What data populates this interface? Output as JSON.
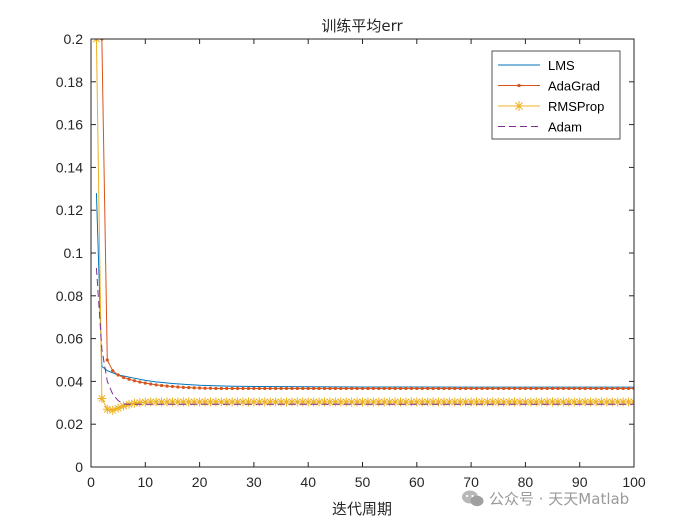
{
  "chart_data": {
    "type": "line",
    "title": "训练平均err",
    "xlabel": "迭代周期",
    "ylabel": "",
    "xlim": [
      0,
      100
    ],
    "ylim": [
      0,
      0.2
    ],
    "xticks": [
      0,
      10,
      20,
      30,
      40,
      50,
      60,
      70,
      80,
      90,
      100
    ],
    "xtick_labels": [
      "0",
      "10",
      "20",
      "30",
      "40",
      "50",
      "60",
      "70",
      "80",
      "90",
      "100"
    ],
    "yticks": [
      0,
      0.02,
      0.04,
      0.06,
      0.08,
      0.1,
      0.12,
      0.14,
      0.16,
      0.18,
      0.2
    ],
    "ytick_labels": [
      "0",
      "0.02",
      "0.04",
      "0.06",
      "0.08",
      "0.1",
      "0.12",
      "0.14",
      "0.16",
      "0.18",
      "0.2"
    ],
    "grid": false,
    "legend_position": "top-right",
    "series": [
      {
        "name": "LMS",
        "color": "#0072BD",
        "line": "solid",
        "marker": "none",
        "x": [
          1,
          2,
          3,
          4,
          5,
          6,
          8,
          10,
          12,
          15,
          18,
          20,
          25,
          30,
          40,
          50,
          60,
          70,
          80,
          90,
          100
        ],
        "y": [
          0.128,
          0.047,
          0.045,
          0.044,
          0.043,
          0.0425,
          0.0415,
          0.0405,
          0.0398,
          0.039,
          0.0385,
          0.0382,
          0.0378,
          0.0376,
          0.0375,
          0.0374,
          0.0374,
          0.0373,
          0.0373,
          0.0373,
          0.0373
        ]
      },
      {
        "name": "AdaGrad",
        "color": "#D95319",
        "line": "solid",
        "marker": "dot",
        "x": [
          1,
          2,
          3,
          4,
          5,
          6,
          7,
          8,
          9,
          10,
          11,
          12,
          13,
          14,
          15,
          16,
          17,
          18,
          19,
          20,
          21,
          22,
          23,
          24,
          25,
          26,
          27,
          28,
          29,
          30,
          31,
          32,
          33,
          34,
          35,
          36,
          37,
          38,
          39,
          40,
          41,
          42,
          43,
          44,
          45,
          46,
          47,
          48,
          49,
          50,
          51,
          52,
          53,
          54,
          55,
          56,
          57,
          58,
          59,
          60,
          61,
          62,
          63,
          64,
          65,
          66,
          67,
          68,
          69,
          70,
          71,
          72,
          73,
          74,
          75,
          76,
          77,
          78,
          79,
          80,
          81,
          82,
          83,
          84,
          85,
          86,
          87,
          88,
          89,
          90,
          91,
          92,
          93,
          94,
          95,
          96,
          97,
          98,
          99,
          100
        ],
        "y": [
          0.2,
          0.2,
          0.05,
          0.045,
          0.043,
          0.0418,
          0.041,
          0.0403,
          0.0397,
          0.0392,
          0.0388,
          0.0384,
          0.0381,
          0.0378,
          0.0376,
          0.0374,
          0.0372,
          0.0371,
          0.037,
          0.0369,
          0.0368,
          0.0368,
          0.0367,
          0.0367,
          0.0367,
          0.0367,
          0.0367,
          0.0367,
          0.0367,
          0.0367,
          0.0367,
          0.0367,
          0.0367,
          0.0367,
          0.0367,
          0.0367,
          0.0367,
          0.0367,
          0.0367,
          0.0367,
          0.0367,
          0.0367,
          0.0367,
          0.0367,
          0.0367,
          0.0367,
          0.0367,
          0.0367,
          0.0367,
          0.0367,
          0.0367,
          0.0367,
          0.0367,
          0.0367,
          0.0367,
          0.0367,
          0.0367,
          0.0367,
          0.0367,
          0.0367,
          0.0367,
          0.0367,
          0.0367,
          0.0367,
          0.0367,
          0.0367,
          0.0367,
          0.0367,
          0.0367,
          0.0367,
          0.0367,
          0.0367,
          0.0367,
          0.0367,
          0.0367,
          0.0367,
          0.0367,
          0.0367,
          0.0367,
          0.0367,
          0.0367,
          0.0367,
          0.0367,
          0.0367,
          0.0367,
          0.0367,
          0.0367,
          0.0367,
          0.0367,
          0.0367,
          0.0367,
          0.0367,
          0.0367,
          0.0367,
          0.0367,
          0.0367,
          0.0367,
          0.0367,
          0.0367,
          0.0367
        ]
      },
      {
        "name": "RMSProp",
        "color": "#EDB120",
        "line": "solid",
        "marker": "asterisk",
        "x": [
          1,
          2,
          3,
          4,
          5,
          6,
          7,
          8,
          9,
          10,
          11,
          12,
          13,
          14,
          15,
          16,
          17,
          18,
          19,
          20,
          21,
          22,
          23,
          24,
          25,
          26,
          27,
          28,
          29,
          30,
          31,
          32,
          33,
          34,
          35,
          36,
          37,
          38,
          39,
          40,
          41,
          42,
          43,
          44,
          45,
          46,
          47,
          48,
          49,
          50,
          51,
          52,
          53,
          54,
          55,
          56,
          57,
          58,
          59,
          60,
          61,
          62,
          63,
          64,
          65,
          66,
          67,
          68,
          69,
          70,
          71,
          72,
          73,
          74,
          75,
          76,
          77,
          78,
          79,
          80,
          81,
          82,
          83,
          84,
          85,
          86,
          87,
          88,
          89,
          90,
          91,
          92,
          93,
          94,
          95,
          96,
          97,
          98,
          99,
          100
        ],
        "y": [
          0.2,
          0.032,
          0.027,
          0.0265,
          0.0275,
          0.0285,
          0.0293,
          0.0298,
          0.0301,
          0.0303,
          0.0304,
          0.0304,
          0.0304,
          0.0304,
          0.0304,
          0.0304,
          0.0304,
          0.0304,
          0.0304,
          0.0304,
          0.0304,
          0.0304,
          0.0304,
          0.0304,
          0.0304,
          0.0304,
          0.0304,
          0.0304,
          0.0304,
          0.0304,
          0.0304,
          0.0304,
          0.0304,
          0.0304,
          0.0304,
          0.0304,
          0.0304,
          0.0304,
          0.0304,
          0.0304,
          0.0304,
          0.0304,
          0.0304,
          0.0304,
          0.0304,
          0.0304,
          0.0304,
          0.0304,
          0.0304,
          0.0304,
          0.0304,
          0.0304,
          0.0304,
          0.0304,
          0.0304,
          0.0304,
          0.0304,
          0.0304,
          0.0304,
          0.0304,
          0.0304,
          0.0304,
          0.0304,
          0.0304,
          0.0304,
          0.0304,
          0.0304,
          0.0304,
          0.0304,
          0.0304,
          0.0304,
          0.0304,
          0.0304,
          0.0304,
          0.0304,
          0.0304,
          0.0304,
          0.0304,
          0.0304,
          0.0304,
          0.0304,
          0.0304,
          0.0304,
          0.0304,
          0.0304,
          0.0304,
          0.0304,
          0.0304,
          0.0304,
          0.0304,
          0.0304,
          0.0304,
          0.0304,
          0.0304,
          0.0304,
          0.0304,
          0.0304,
          0.0304,
          0.0304,
          0.0304
        ]
      },
      {
        "name": "Adam",
        "color": "#7E2F8E",
        "line": "dashed",
        "marker": "none",
        "x": [
          1,
          2,
          3,
          4,
          5,
          6,
          7,
          8,
          10,
          12,
          15,
          20,
          30,
          40,
          50,
          60,
          70,
          80,
          90,
          100
        ],
        "y": [
          0.093,
          0.055,
          0.04,
          0.034,
          0.031,
          0.0295,
          0.0293,
          0.0293,
          0.0293,
          0.0293,
          0.0293,
          0.0293,
          0.0293,
          0.0293,
          0.0293,
          0.0293,
          0.0293,
          0.0293,
          0.0293,
          0.0293
        ]
      }
    ]
  },
  "watermark": {
    "icon": "wechat-icon",
    "text": "公众号 · 天天Matlab"
  }
}
